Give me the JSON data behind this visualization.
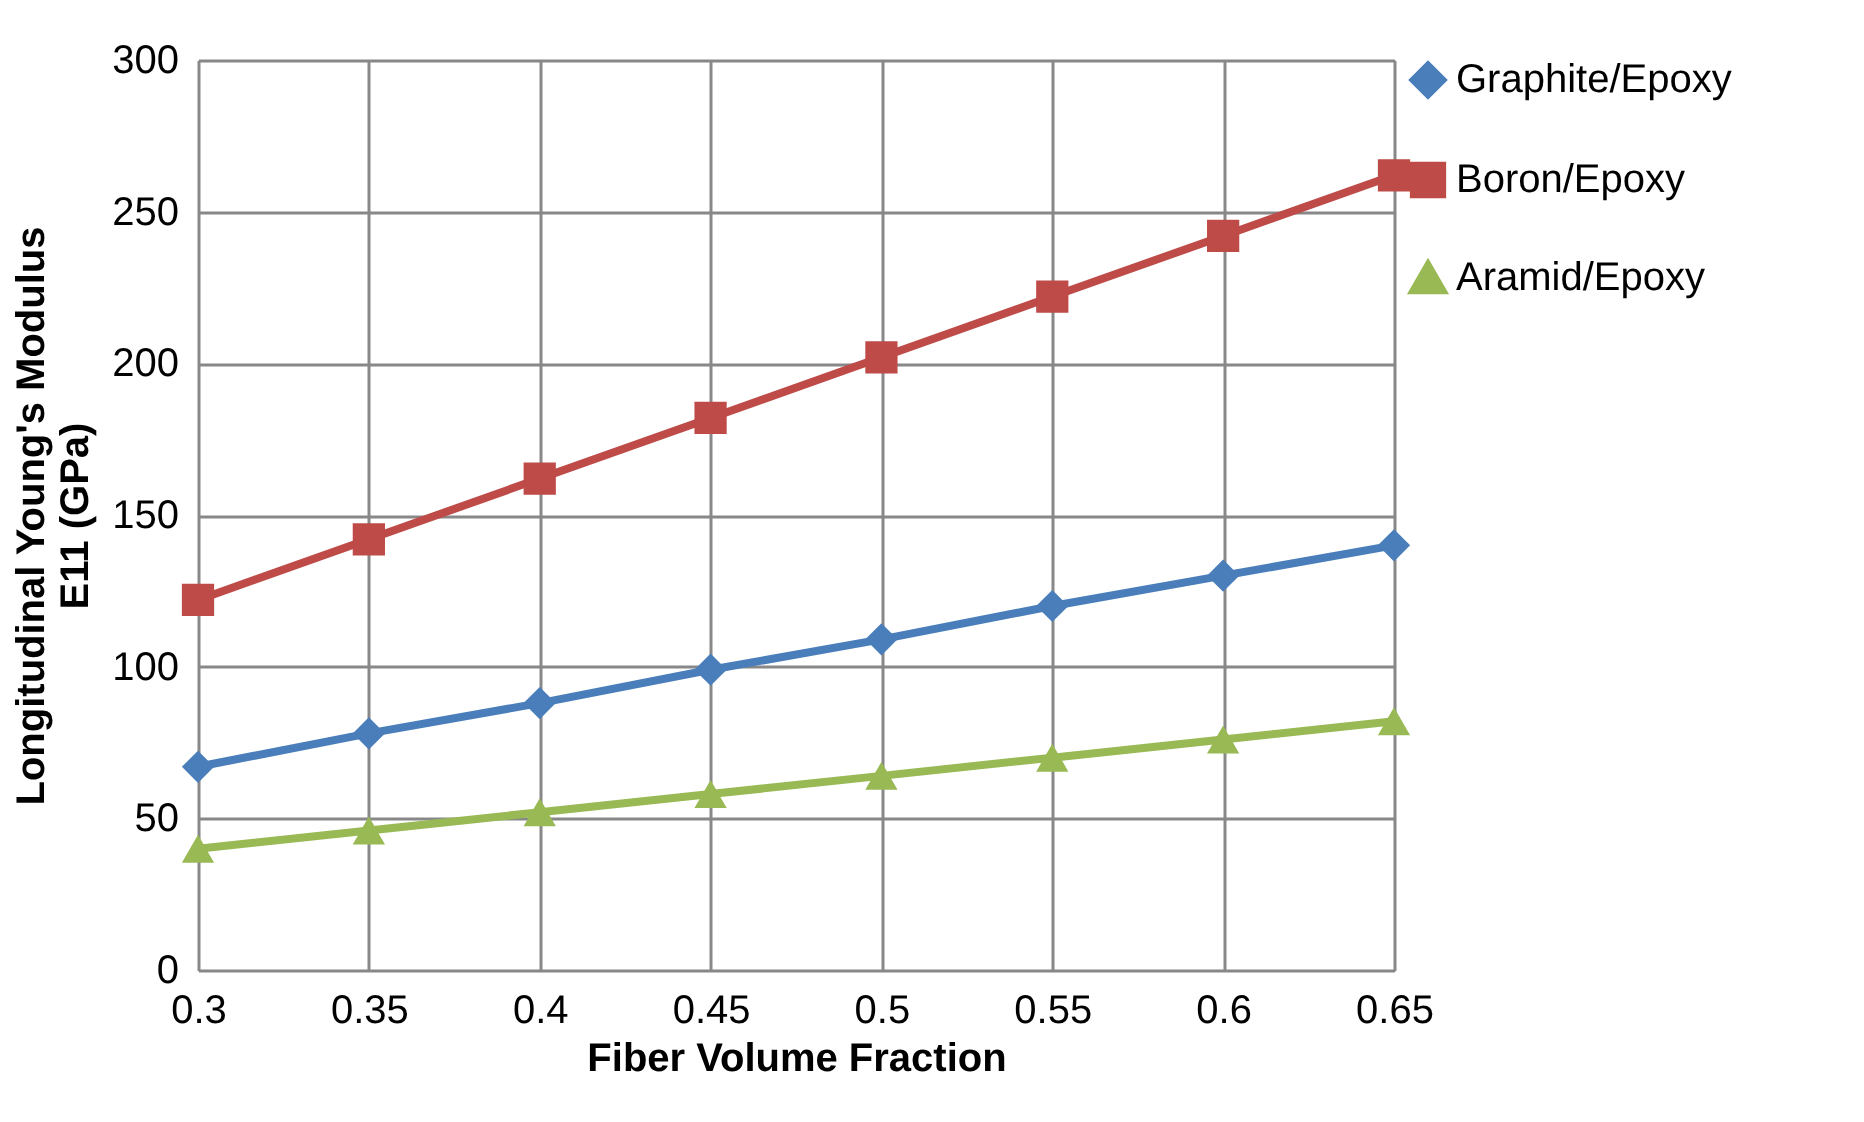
{
  "chart_data": {
    "type": "line",
    "xlabel": "Fiber Volume Fraction",
    "ylabel": "Longitudinal Young's Modulus\nE11 (GPa)",
    "x": [
      0.3,
      0.35,
      0.4,
      0.45,
      0.5,
      0.55,
      0.6,
      0.65
    ],
    "series": [
      {
        "name": "Graphite/Epoxy",
        "color": "#4a7ebb",
        "marker": "diamond",
        "values": [
          67,
          78,
          88,
          99,
          109,
          120,
          130,
          140
        ]
      },
      {
        "name": "Boron/Epoxy",
        "color": "#be4b48",
        "marker": "square",
        "values": [
          122,
          142,
          162,
          182,
          202,
          222,
          242,
          262
        ]
      },
      {
        "name": "Aramid/Epoxy",
        "color": "#98b954",
        "marker": "triangle",
        "values": [
          40,
          46,
          52,
          58,
          64,
          70,
          76,
          82
        ]
      }
    ],
    "xlim": [
      0.3,
      0.65
    ],
    "xticks": [
      0.3,
      0.35,
      0.4,
      0.45,
      0.5,
      0.55,
      0.6,
      0.65
    ],
    "ylim": [
      0,
      300
    ],
    "yticks": [
      0,
      50,
      100,
      150,
      200,
      250,
      300
    ],
    "grid": true,
    "legend": "right",
    "line_style": "solid"
  }
}
